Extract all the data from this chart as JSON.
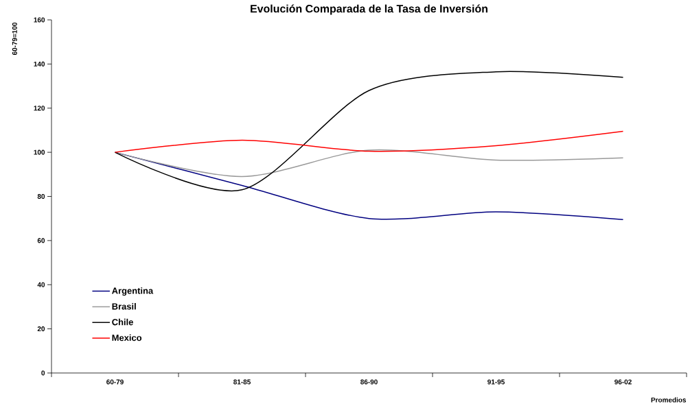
{
  "chart_data": {
    "type": "line",
    "title": "Evolución Comparada de la Tasa de Inversión",
    "xlabel": "Promedios",
    "ylabel": "60-79=100",
    "categories": [
      "60-79",
      "81-85",
      "86-90",
      "91-95",
      "96-02"
    ],
    "series": [
      {
        "name": "Argentina",
        "color": "#000080",
        "values": [
          100,
          85,
          70,
          73,
          69.5
        ]
      },
      {
        "name": "Brasil",
        "color": "#999999",
        "values": [
          100,
          89,
          101,
          96.5,
          97.5
        ]
      },
      {
        "name": "Chile",
        "color": "#000000",
        "values": [
          100,
          83,
          128,
          136.5,
          134
        ]
      },
      {
        "name": "Mexico",
        "color": "#ff0000",
        "values": [
          100,
          105.5,
          100.5,
          103,
          109.5
        ]
      }
    ],
    "ylim": [
      0,
      160
    ],
    "yticks": [
      0,
      20,
      40,
      60,
      80,
      100,
      120,
      140,
      160
    ],
    "grid": false,
    "legend": "bottom left",
    "marker": "none",
    "line_style": "solid"
  }
}
